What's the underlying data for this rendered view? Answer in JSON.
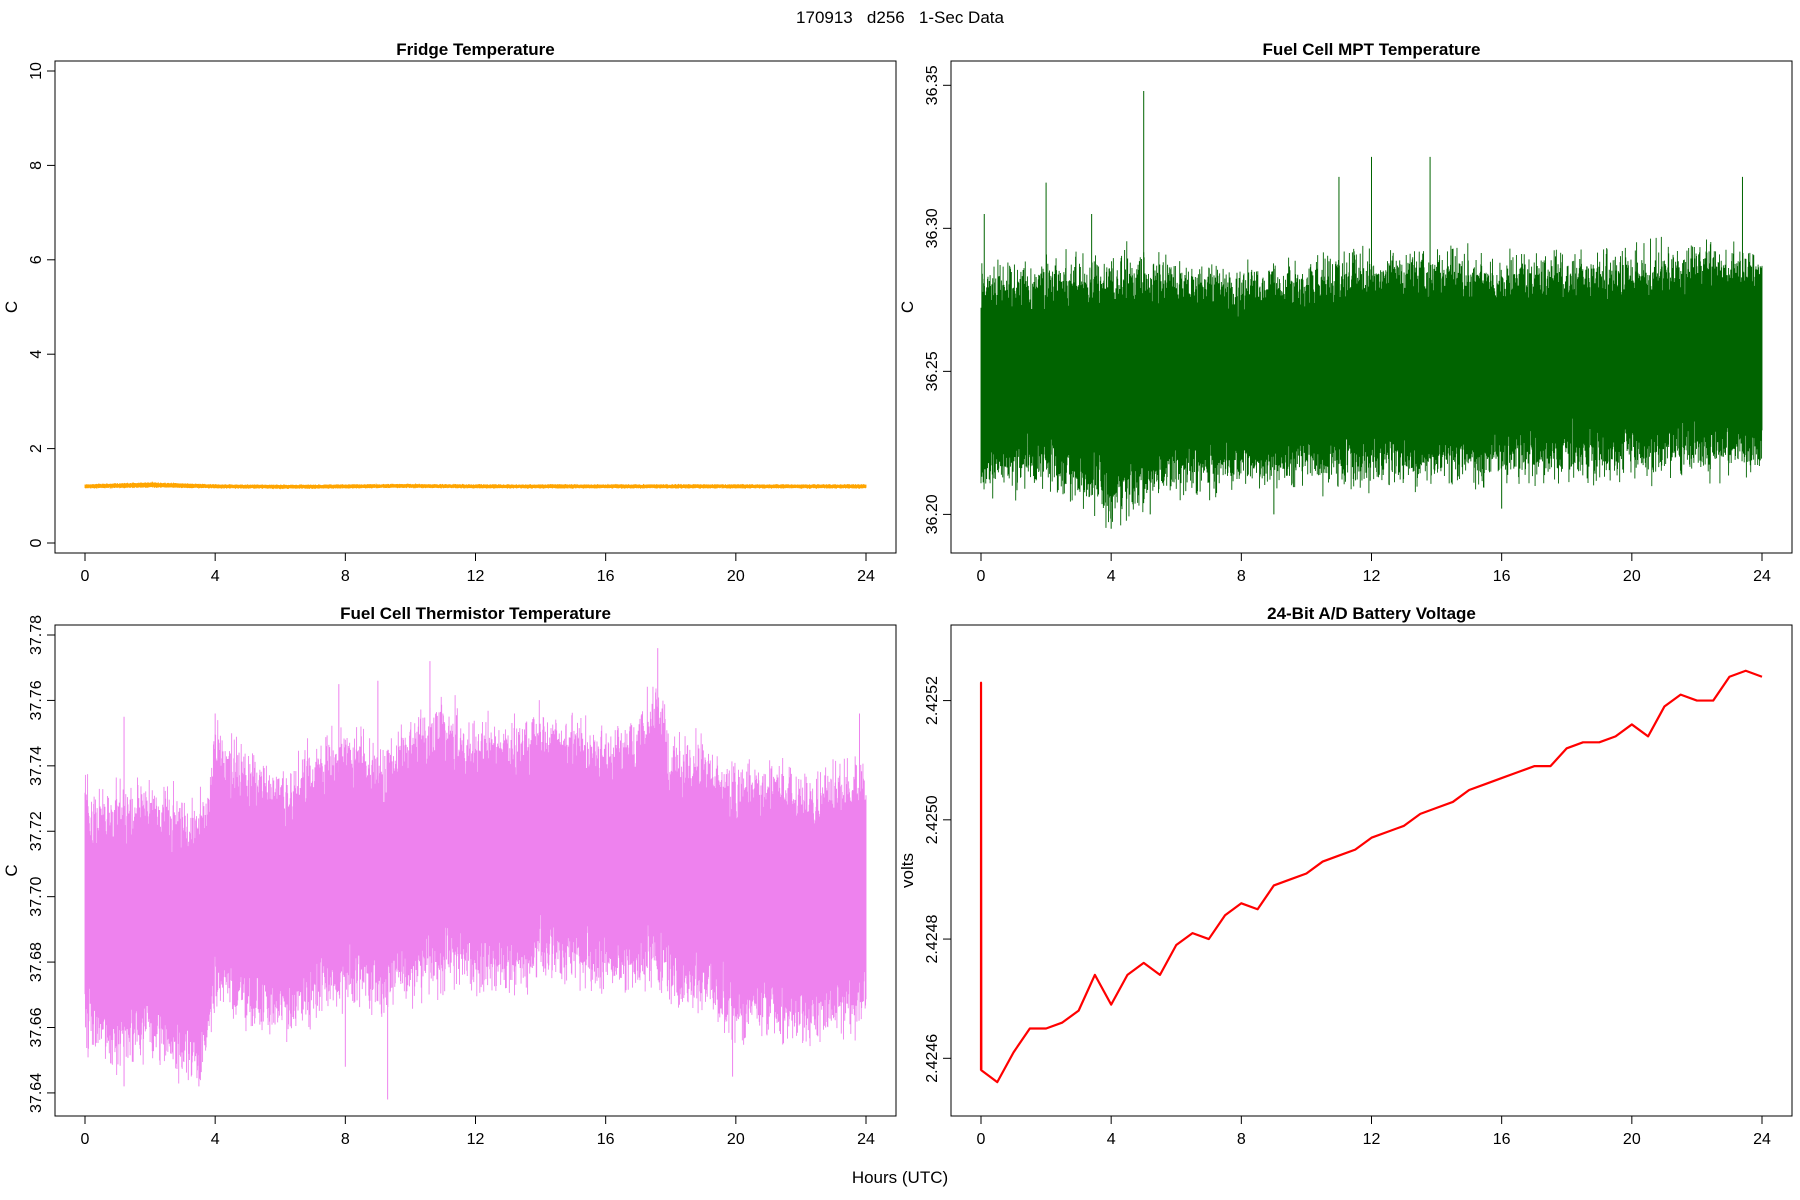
{
  "page": {
    "title": "170913   d256   1-Sec Data",
    "xlabel": "Hours (UTC)"
  },
  "chart_data": [
    {
      "type": "line",
      "title": "Fridge Temperature",
      "xlabel": "Hours (UTC)",
      "ylabel": "C",
      "color": "#FFA500",
      "xlim": [
        0,
        24
      ],
      "ylim": [
        0,
        10
      ],
      "xticks": [
        0,
        4,
        8,
        12,
        16,
        20,
        24
      ],
      "yticks": [
        0,
        2,
        4,
        6,
        8,
        10
      ],
      "ytick_labels": [
        "0",
        "2",
        "4",
        "6",
        "8",
        "10"
      ],
      "grid": false,
      "series": [
        {
          "x": [
            0,
            2,
            4,
            6,
            8,
            10,
            12,
            14,
            16,
            18,
            20,
            22,
            24
          ],
          "mean": [
            1.2,
            1.23,
            1.2,
            1.19,
            1.2,
            1.21,
            1.2,
            1.2,
            1.2,
            1.2,
            1.2,
            1.2,
            1.2
          ],
          "spread": [
            0.03,
            0.04,
            0.03,
            0.03,
            0.03,
            0.03,
            0.03,
            0.03,
            0.03,
            0.03,
            0.03,
            0.03,
            0.03
          ]
        }
      ]
    },
    {
      "type": "line",
      "title": "Fuel Cell MPT Temperature",
      "xlabel": "Hours (UTC)",
      "ylabel": "C",
      "color": "#006400",
      "xlim": [
        0,
        24
      ],
      "ylim": [
        36.19,
        36.355
      ],
      "xticks": [
        0,
        4,
        8,
        12,
        16,
        20,
        24
      ],
      "yticks": [
        36.2,
        36.25,
        36.3,
        36.35
      ],
      "ytick_labels": [
        "36.20",
        "36.25",
        "36.30",
        "36.35"
      ],
      "grid": false,
      "series": [
        {
          "x": [
            0,
            2,
            4,
            6,
            8,
            10,
            12,
            14,
            16,
            18,
            20,
            22,
            24
          ],
          "mean": [
            36.248,
            36.249,
            36.245,
            36.249,
            36.248,
            36.25,
            36.251,
            36.252,
            36.251,
            36.252,
            36.252,
            36.255,
            36.253
          ],
          "spread": [
            0.025,
            0.025,
            0.03,
            0.027,
            0.025,
            0.025,
            0.026,
            0.026,
            0.025,
            0.025,
            0.025,
            0.026,
            0.025
          ],
          "peaks": [
            [
              5.0,
              36.348
            ],
            [
              12.0,
              36.325
            ],
            [
              13.8,
              36.325
            ],
            [
              2.0,
              36.316
            ],
            [
              11.0,
              36.318
            ],
            [
              23.4,
              36.318
            ],
            [
              3.4,
              36.305
            ],
            [
              0.1,
              36.305
            ]
          ],
          "troughs": [
            [
              4.0,
              36.195
            ],
            [
              5.2,
              36.2
            ],
            [
              16.0,
              36.202
            ],
            [
              9.0,
              36.2
            ]
          ]
        }
      ]
    },
    {
      "type": "line",
      "title": "Fuel Cell Thermistor Temperature",
      "xlabel": "Hours (UTC)",
      "ylabel": "C",
      "color": "#EE82EE",
      "xlim": [
        0,
        24
      ],
      "ylim": [
        37.636,
        37.78
      ],
      "xticks": [
        0,
        4,
        8,
        12,
        16,
        20,
        24
      ],
      "yticks": [
        37.64,
        37.66,
        37.68,
        37.7,
        37.72,
        37.74,
        37.76,
        37.78
      ],
      "ytick_labels": [
        "37.64",
        "37.66",
        "37.68",
        "37.70",
        "37.72",
        "37.74",
        "37.76",
        "37.78"
      ],
      "grid": false,
      "series": [
        {
          "x": [
            0,
            1,
            2,
            3,
            3.8,
            4,
            5,
            6,
            7,
            8,
            9,
            10,
            11,
            12,
            13,
            14,
            15,
            16,
            17,
            17.6,
            18,
            19,
            20,
            21,
            22,
            23,
            24
          ],
          "mean": [
            37.695,
            37.69,
            37.695,
            37.685,
            37.69,
            37.71,
            37.702,
            37.698,
            37.703,
            37.71,
            37.705,
            37.712,
            37.716,
            37.713,
            37.712,
            37.716,
            37.715,
            37.711,
            37.714,
            37.72,
            37.708,
            37.706,
            37.698,
            37.7,
            37.696,
            37.698,
            37.702
          ],
          "spread": [
            0.025,
            0.028,
            0.027,
            0.028,
            0.028,
            0.028,
            0.027,
            0.026,
            0.027,
            0.028,
            0.026,
            0.028,
            0.028,
            0.026,
            0.026,
            0.026,
            0.026,
            0.026,
            0.027,
            0.03,
            0.026,
            0.026,
            0.028,
            0.027,
            0.026,
            0.027,
            0.026
          ],
          "peaks": [
            [
              17.6,
              37.776
            ],
            [
              10.6,
              37.772
            ],
            [
              9.0,
              37.766
            ],
            [
              7.8,
              37.765
            ],
            [
              4.0,
              37.756
            ],
            [
              23.8,
              37.756
            ],
            [
              1.2,
              37.755
            ]
          ],
          "troughs": [
            [
              9.3,
              37.638
            ],
            [
              1.2,
              37.642
            ],
            [
              3.5,
              37.642
            ],
            [
              19.9,
              37.645
            ],
            [
              8.0,
              37.648
            ]
          ]
        }
      ]
    },
    {
      "type": "line",
      "title": "24-Bit A/D Battery Voltage",
      "xlabel": "Hours (UTC)",
      "ylabel": "volts",
      "color": "#FF0000",
      "xlim": [
        0,
        24
      ],
      "ylim": [
        2.42452,
        2.42531
      ],
      "xticks": [
        0,
        4,
        8,
        12,
        16,
        20,
        24
      ],
      "yticks": [
        2.4246,
        2.4248,
        2.425,
        2.4252
      ],
      "ytick_labels": [
        "2.4246",
        "2.4248",
        "2.4250",
        "2.4252"
      ],
      "grid": false,
      "series": [
        {
          "x": [
            0,
            0.001,
            0.01,
            0.5,
            1.0,
            1.5,
            2.0,
            2.5,
            3.0,
            3.5,
            4.0,
            4.5,
            5.0,
            5.5,
            6.0,
            6.5,
            7.0,
            7.5,
            8.0,
            8.5,
            9.0,
            9.5,
            10.0,
            10.5,
            11.0,
            11.5,
            12.0,
            12.5,
            13.0,
            13.5,
            14.0,
            14.5,
            15.0,
            15.5,
            16.0,
            16.5,
            17.0,
            17.5,
            18.0,
            18.5,
            19.0,
            19.5,
            20.0,
            20.5,
            21.0,
            21.5,
            22.0,
            22.5,
            23.0,
            23.5,
            24.0
          ],
          "values": [
            2.42458,
            2.42523,
            2.42458,
            2.42456,
            2.42461,
            2.42465,
            2.42465,
            2.42466,
            2.42468,
            2.42474,
            2.42469,
            2.42474,
            2.42476,
            2.42474,
            2.42479,
            2.42481,
            2.4248,
            2.42484,
            2.42486,
            2.42485,
            2.42489,
            2.4249,
            2.42491,
            2.42493,
            2.42494,
            2.42495,
            2.42497,
            2.42498,
            2.42499,
            2.42501,
            2.42502,
            2.42503,
            2.42505,
            2.42506,
            2.42507,
            2.42508,
            2.42509,
            2.42509,
            2.42512,
            2.42513,
            2.42513,
            2.42514,
            2.42516,
            2.42514,
            2.42519,
            2.42521,
            2.4252,
            2.4252,
            2.42524,
            2.42525,
            2.42524
          ]
        }
      ]
    }
  ]
}
